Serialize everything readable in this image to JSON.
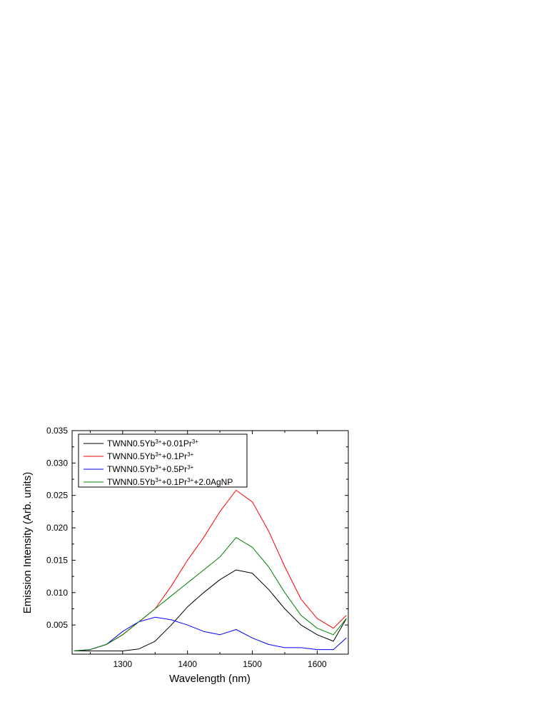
{
  "chart_data": {
    "type": "line",
    "title": "",
    "xlabel": "Wavelength (nm)",
    "ylabel": "Emission Intensity (Arb. units)",
    "xlim": [
      1222,
      1648
    ],
    "ylim": [
      0.0005,
      0.035
    ],
    "x_ticks": [
      1300,
      1400,
      1500,
      1600
    ],
    "x_tick_labels": [
      "1300",
      "1400",
      "1500",
      "1600"
    ],
    "y_ticks": [
      0.005,
      0.01,
      0.015,
      0.02,
      0.025,
      0.03,
      0.035
    ],
    "y_tick_labels": [
      "0.005",
      "0.010",
      "0.015",
      "0.020",
      "0.025",
      "0.030",
      "0.035"
    ],
    "grid": false,
    "legend_position": "top-left",
    "x": [
      1225,
      1250,
      1275,
      1300,
      1325,
      1350,
      1375,
      1400,
      1425,
      1450,
      1475,
      1500,
      1525,
      1550,
      1575,
      1600,
      1625,
      1645
    ],
    "series": [
      {
        "name": "TWNN0.5Yb³⁺+0.01Pr³⁺",
        "color": "#000000",
        "values": [
          0.001,
          0.001,
          0.001,
          0.001,
          0.0013,
          0.0025,
          0.005,
          0.0078,
          0.01,
          0.012,
          0.0135,
          0.013,
          0.0105,
          0.0075,
          0.005,
          0.0035,
          0.0025,
          0.006
        ]
      },
      {
        "name": "TWNN0.5Yb³⁺+0.1Pr³⁺",
        "color": "#ff0000",
        "values": [
          0.001,
          0.0012,
          0.002,
          0.0035,
          0.0055,
          0.0075,
          0.011,
          0.015,
          0.0185,
          0.0225,
          0.0258,
          0.024,
          0.0195,
          0.014,
          0.009,
          0.006,
          0.0045,
          0.0065
        ]
      },
      {
        "name": "TWNN0.5Yb³⁺+0.5Pr³⁺",
        "color": "#0000ff",
        "values": [
          0.001,
          0.0012,
          0.002,
          0.004,
          0.0055,
          0.0062,
          0.0058,
          0.005,
          0.004,
          0.0035,
          0.0043,
          0.003,
          0.002,
          0.0015,
          0.0015,
          0.0012,
          0.0012,
          0.003
        ]
      },
      {
        "name": "TWNN0.5Yb³⁺+0.1Pr³⁺+2.0AgNP",
        "color": "#008000",
        "values": [
          0.001,
          0.0012,
          0.002,
          0.0035,
          0.0055,
          0.0075,
          0.0095,
          0.0115,
          0.0135,
          0.0155,
          0.0185,
          0.017,
          0.014,
          0.01,
          0.0065,
          0.0045,
          0.0035,
          0.006
        ]
      }
    ],
    "legend_items": [
      {
        "base1": "TWNN0.5Yb",
        "sup1": "3+",
        "base2": "+0.01Pr",
        "sup2": "3+",
        "tail": ""
      },
      {
        "base1": "TWNN0.5Yb",
        "sup1": "3+",
        "base2": "+0.1Pr",
        "sup2": "3+",
        "tail": ""
      },
      {
        "base1": "TWNN0.5Yb",
        "sup1": "3+",
        "base2": "+0.5Pr",
        "sup2": "3+",
        "tail": ""
      },
      {
        "base1": "TWNN0.5Yb",
        "sup1": "3+",
        "base2": "+0.1Pr",
        "sup2": "3+",
        "tail": "+2.0AgNP"
      }
    ]
  }
}
